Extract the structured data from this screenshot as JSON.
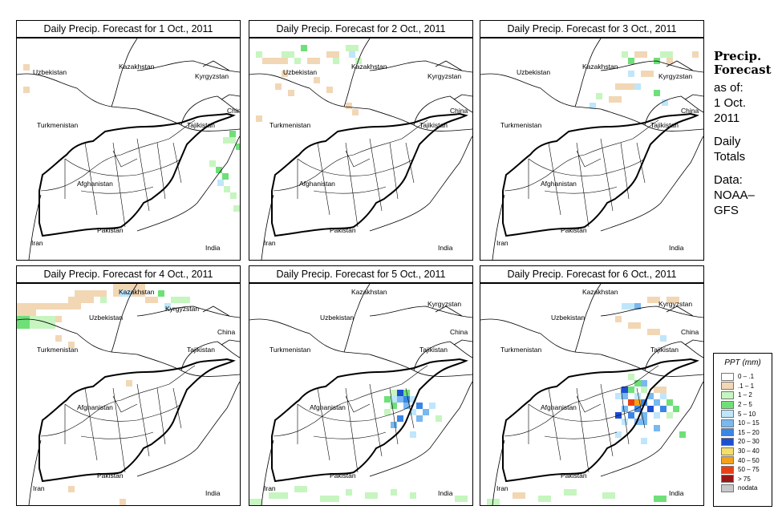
{
  "panels": [
    {
      "title": "Daily Precip. Forecast for  1 Oct., 2011"
    },
    {
      "title": "Daily Precip. Forecast for  2 Oct., 2011"
    },
    {
      "title": "Daily Precip. Forecast for  3 Oct., 2011"
    },
    {
      "title": "Daily Precip. Forecast for  4 Oct., 2011"
    },
    {
      "title": "Daily Precip. Forecast for  5 Oct., 2011"
    },
    {
      "title": "Daily Precip. Forecast for  6 Oct., 2011"
    }
  ],
  "map_labels": {
    "uzbekistan": "Uzbekistan",
    "kazakhstan": "Kazakhstan",
    "kyrgyzstan": "Kyrgyzstan",
    "china": "China",
    "turkmenistan": "Turkmenistan",
    "tajikistan": "Tajikistan",
    "afghanistan": "Afghanistan",
    "iran": "Iran",
    "pakistan": "Pakistan",
    "india": "India"
  },
  "sidebar": {
    "heading_line1": "Precip.",
    "heading_line2": "Forecast",
    "asof_line1": "as of:",
    "asof_line2": "1 Oct.",
    "asof_line3": "2011",
    "totals_line1": "Daily",
    "totals_line2": "Totals",
    "source_line1": "Data:",
    "source_line2": "NOAA–",
    "source_line3": "GFS"
  },
  "legend": {
    "title": "PPT (mm)",
    "bins": [
      {
        "label": "0 – .1",
        "color": "#ffffff"
      },
      {
        "label": ".1 – 1",
        "color": "#f2d7b5"
      },
      {
        "label": "1 – 2",
        "color": "#c6f5c0"
      },
      {
        "label": "2 – 5",
        "color": "#6fe078"
      },
      {
        "label": "5 – 10",
        "color": "#bfe6fb"
      },
      {
        "label": "10 – 15",
        "color": "#79b8f0"
      },
      {
        "label": "15 – 20",
        "color": "#3a86e6"
      },
      {
        "label": "20 – 30",
        "color": "#1d4fd1"
      },
      {
        "label": "30 – 40",
        "color": "#f5df6a"
      },
      {
        "label": "40 – 50",
        "color": "#f4a21b"
      },
      {
        "label": "50 – 75",
        "color": "#e84015"
      },
      {
        "label": "> 75",
        "color": "#9c1515"
      },
      {
        "label": "nodata",
        "color": "#c8c8c8"
      }
    ]
  }
}
